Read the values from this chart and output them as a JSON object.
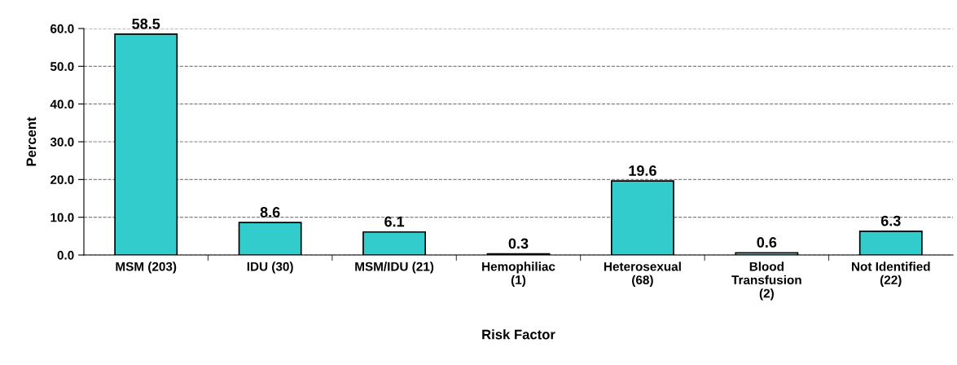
{
  "chart_data": {
    "type": "bar",
    "xlabel": "Risk Factor",
    "ylabel": "Percent",
    "categories": [
      "MSM (203)",
      "IDU (30)",
      "MSM/IDU (21)",
      "Hemophiliac\n(1)",
      "Heterosexual\n(68)",
      "Blood\nTransfusion\n(2)",
      "Not Identified\n(22)"
    ],
    "values": [
      58.5,
      8.6,
      6.1,
      0.3,
      19.6,
      0.6,
      6.3
    ],
    "color": "#33cccc",
    "data_labels": true,
    "grid": "y",
    "ylim": [
      0,
      60
    ],
    "yticks": [
      {
        "value": 0,
        "label": "0.0"
      },
      {
        "value": 10,
        "label": "10.0"
      },
      {
        "value": 20,
        "label": "20.0"
      },
      {
        "value": 30,
        "label": "30.0"
      },
      {
        "value": 40,
        "label": "40.0"
      },
      {
        "value": 50,
        "label": "50.0"
      },
      {
        "value": 60,
        "label": "60.0"
      }
    ]
  }
}
